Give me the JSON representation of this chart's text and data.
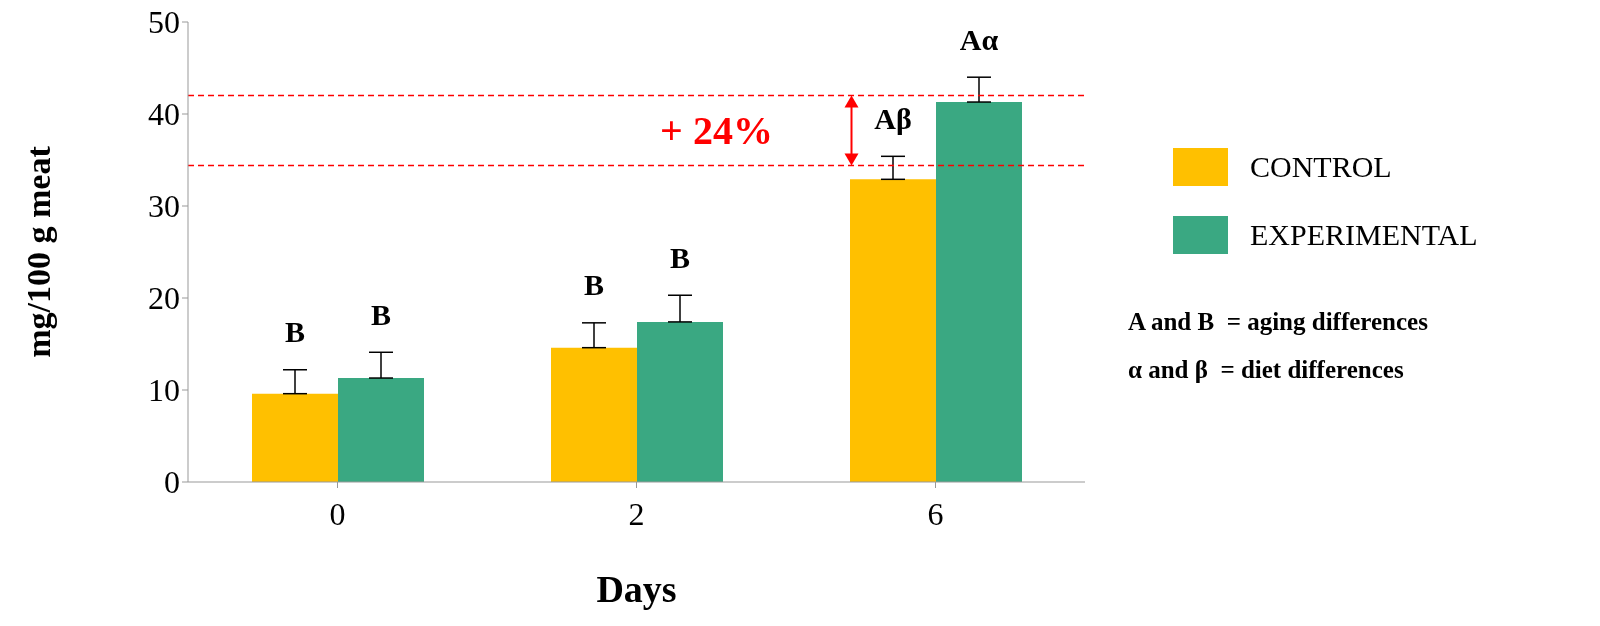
{
  "chart_data": {
    "type": "bar",
    "xlabel": "Days",
    "ylabel": "mg/100 g meat",
    "categories": [
      "0",
      "2",
      "6"
    ],
    "series": [
      {
        "name": "CONTROL",
        "color": "#ffc000",
        "values": [
          9.6,
          14.6,
          32.9
        ],
        "errors": [
          [
            9.6,
            12.2
          ],
          [
            14.6,
            17.3
          ],
          [
            32.9,
            35.4
          ]
        ],
        "value_labels": [
          "B",
          "B",
          "Aβ"
        ]
      },
      {
        "name": "EXPERIMENTAL",
        "color": "#3aa882",
        "values": [
          11.3,
          17.4,
          41.3
        ],
        "errors": [
          [
            11.3,
            14.1
          ],
          [
            17.4,
            20.3
          ],
          [
            41.3,
            44
          ]
        ],
        "value_labels": [
          "B",
          "B",
          "Aα"
        ]
      }
    ],
    "ylim": [
      0,
      50
    ],
    "yticks": [
      0,
      10,
      20,
      30,
      40,
      50
    ],
    "legend": "right",
    "ref_lines": [
      {
        "axis": "y",
        "value": 42,
        "color": "#ff0000",
        "line_style": "dashed"
      },
      {
        "axis": "y",
        "value": 34.4,
        "color": "#ff0000",
        "line_style": "dashed"
      }
    ],
    "annotations": [
      "+ 24%",
      "A and B  = aging differences",
      "α and β  = diet differences"
    ]
  }
}
